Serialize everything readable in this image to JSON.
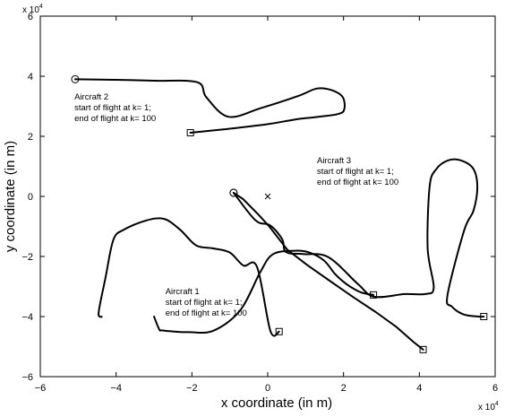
{
  "chart_data": {
    "type": "line",
    "title": "",
    "xlabel": "x coordinate (in m)",
    "ylabel": "y coordinate (in m)",
    "xlim": [
      -60000,
      60000
    ],
    "ylim": [
      -60000,
      60000
    ],
    "x_ticks": [
      -60000,
      -40000,
      -20000,
      0,
      20000,
      40000,
      60000
    ],
    "y_ticks": [
      -60000,
      -40000,
      -20000,
      0,
      20000,
      40000,
      60000
    ],
    "x_tick_labels": [
      "−6",
      "−4",
      "−2",
      "0",
      "2",
      "4",
      "6"
    ],
    "y_tick_labels": [
      "−6",
      "−4",
      "−2",
      "0",
      "2",
      "4",
      "6"
    ],
    "x_multiplier": "x 10",
    "x_multiplier_exp": "4",
    "y_multiplier": "x 10",
    "y_multiplier_exp": "4",
    "grid": false,
    "legend": "none",
    "line_color": "#000000",
    "center_marker": {
      "symbol": "x",
      "point": [
        0,
        0
      ]
    },
    "series": [
      {
        "name": "Aircraft 1",
        "start_marker": "circle",
        "end_marker": "square",
        "x": [
          -9000,
          -6500,
          -2500,
          400,
          5200,
          10400,
          16500,
          22500,
          28500,
          34000,
          38500,
          41000
        ],
        "y": [
          1200,
          -900,
          -6000,
          -10000,
          -17800,
          -22800,
          -28200,
          -33500,
          -38500,
          -43500,
          -48500,
          -51000
        ]
      },
      {
        "name": "Aircraft 2",
        "start_marker": "circle",
        "end_marker": "square",
        "x": [
          -50800,
          -40000,
          -30000,
          -18600,
          -16200,
          -10400,
          -2000,
          8000,
          13000,
          17000,
          19800,
          20200,
          18500,
          12600,
          7300,
          300,
          -6600,
          -13400,
          -20400
        ],
        "y": [
          39000,
          38800,
          38500,
          38000,
          33000,
          26500,
          29300,
          33400,
          35900,
          35300,
          33000,
          29000,
          27400,
          26400,
          25600,
          24100,
          23000,
          22100,
          21200
        ]
      },
      {
        "name": "Aircraft 3",
        "start_marker": "circle",
        "end_marker": "square",
        "x": [
          -9000,
          -3200,
          600,
          3800,
          4800,
          9200,
          16000,
          23800,
          28100,
          36200,
          41600,
          43800,
          42200,
          42700,
          44400,
          47600,
          50900,
          54200,
          55300,
          54300,
          51800,
          47400,
          48600,
          51700,
          55600,
          57000
        ],
        "y": [
          1200,
          -8000,
          -9600,
          -14200,
          -18500,
          -19200,
          -20200,
          -29200,
          -33400,
          -32500,
          -32500,
          -30300,
          -17300,
          3200,
          9000,
          12000,
          12000,
          9300,
          3300,
          -4700,
          -11400,
          -33000,
          -36700,
          -39300,
          -40000,
          -40000
        ]
      },
      {
        "name": "",
        "start_marker": "none",
        "end_marker": "square",
        "x": [
          -30000,
          -28600,
          -27900,
          -24600,
          -20600,
          -14300,
          -7300,
          -2000,
          1300,
          7000,
          10800,
          14800,
          17600,
          19300,
          21600,
          24700,
          27900
        ],
        "y": [
          -40000,
          -44300,
          -44600,
          -45000,
          -45200,
          -44700,
          -38000,
          -25300,
          -19300,
          -18100,
          -18600,
          -21300,
          -25600,
          -27700,
          -29900,
          -32000,
          -32800
        ]
      },
      {
        "name": "",
        "start_marker": "none",
        "end_marker": "square",
        "x": [
          -43800,
          -44600,
          -42800,
          -40700,
          -37800,
          -32000,
          -27300,
          -23100,
          -18900,
          -14400,
          -10000,
          -6400,
          -2800,
          700,
          3000
        ],
        "y": [
          -40100,
          -38600,
          -27100,
          -14400,
          -11000,
          -8000,
          -7500,
          -11100,
          -16300,
          -17300,
          -18700,
          -23000,
          -23500,
          -44800,
          -45000
        ]
      }
    ],
    "annotations": [
      {
        "name": "Aircraft 2",
        "lines": [
          "Aircraft 2",
          "start of flight at k= 1;",
          "end of flight at k= 100"
        ],
        "at": [
          -51000,
          32300
        ]
      },
      {
        "name": "Aircraft 3",
        "lines": [
          "Aircraft 3",
          "start of flight at k= 1;",
          "end of flight at k= 100"
        ],
        "at": [
          13000,
          11000
        ]
      },
      {
        "name": "Aircraft 1",
        "lines": [
          "Aircraft 1",
          "start of flight at k= 1;",
          "end of flight at k= 100"
        ],
        "at": [
          -27000,
          -32600
        ]
      }
    ]
  }
}
